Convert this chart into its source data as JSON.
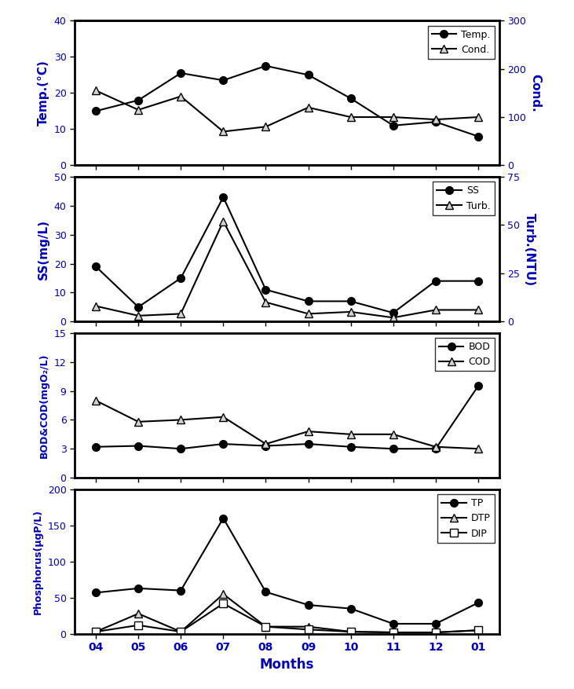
{
  "x_positions": [
    0,
    1,
    2,
    3,
    4,
    5,
    6,
    7,
    8,
    9
  ],
  "x_labels": [
    "04",
    "05",
    "06",
    "07",
    "08",
    "09",
    "10",
    "11",
    "12",
    "01"
  ],
  "temp": [
    15,
    18,
    25.5,
    23.5,
    27.5,
    25,
    18.5,
    11,
    12,
    8
  ],
  "cond": [
    155,
    115,
    143,
    70,
    80,
    120,
    100,
    100,
    95,
    100
  ],
  "ss": [
    19,
    5,
    15,
    43,
    11,
    7,
    7,
    3,
    14,
    14
  ],
  "turb": [
    8,
    3,
    4,
    52,
    10,
    4,
    5,
    2,
    6,
    6
  ],
  "bod": [
    3.2,
    3.3,
    3.0,
    3.5,
    3.3,
    3.5,
    3.2,
    3.0,
    3.0,
    9.5
  ],
  "cod": [
    8,
    5.8,
    6.0,
    6.3,
    3.5,
    4.8,
    4.5,
    4.5,
    3.2,
    3.0
  ],
  "tp": [
    57,
    63,
    60,
    160,
    58,
    40,
    35,
    14,
    14,
    43
  ],
  "dtp": [
    3,
    28,
    3,
    55,
    10,
    10,
    3,
    2,
    2,
    5
  ],
  "dip": [
    3,
    12,
    3,
    42,
    10,
    6,
    3,
    2,
    2,
    5
  ],
  "ylabel1": "Temp.(°C)",
  "ylabel1_right": "Cond.",
  "ylabel2": "SS(mg/L)",
  "ylabel2_right": "Turb.(NTU)",
  "ylabel3": "BOD&COD(mgO₂/L)",
  "ylabel4": "Phosphorus(μgP/L)",
  "xlabel": "Months",
  "color_axis": "#0000bb",
  "color_right_axis": "#0000bb",
  "xlim": [
    -0.5,
    9.5
  ]
}
